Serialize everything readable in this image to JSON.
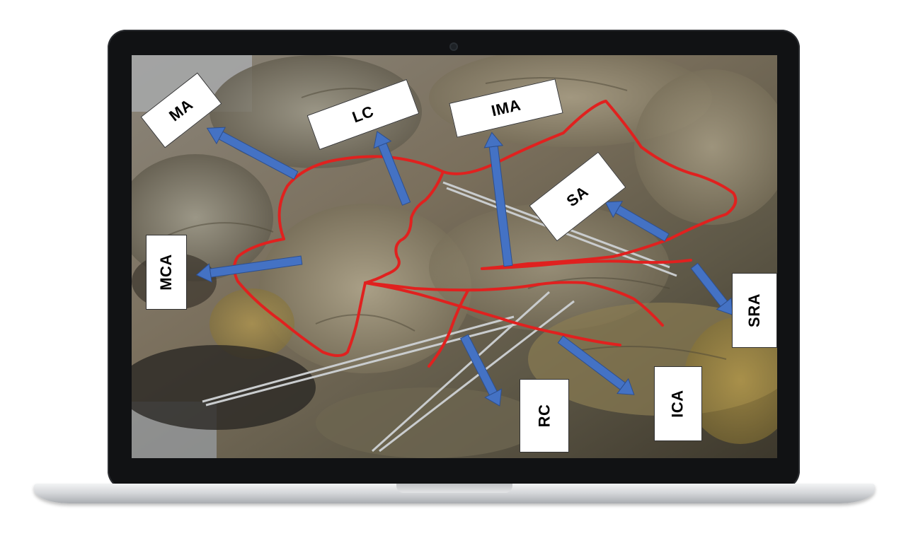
{
  "labels": {
    "ma": "MA",
    "lc": "LC",
    "ima": "IMA",
    "sa": "SA",
    "mca": "MCA",
    "sra": "SRA",
    "rc": "RC",
    "ica": "ICA"
  },
  "colors": {
    "vessel_outline": "#e0211f",
    "arrow": "#4472c4",
    "label_bg": "#ffffff",
    "bezel": "#111214"
  }
}
